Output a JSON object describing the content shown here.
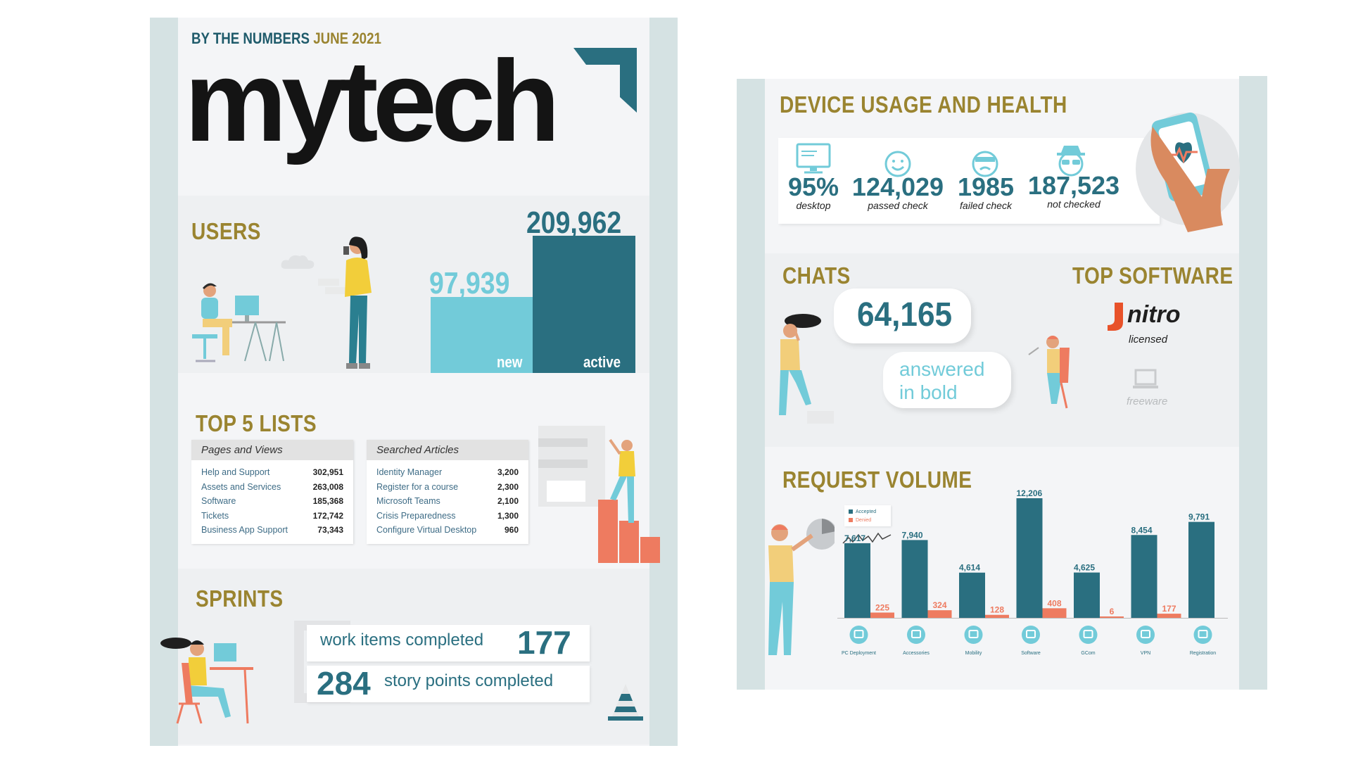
{
  "header": {
    "kicker": "BY THE NUMBERS",
    "date": "JUNE 2021",
    "logo_text": "mytech"
  },
  "users": {
    "title": "USERS",
    "new_value": "97,939",
    "new_label": "new",
    "active_value": "209,962",
    "active_label": "active",
    "new_count": 97939,
    "active_count": 209962
  },
  "top5": {
    "title": "TOP 5 LISTS",
    "pages": {
      "header": "Pages and Views",
      "rows": [
        {
          "label": "Help and Support",
          "value": "302,951"
        },
        {
          "label": "Assets and Services",
          "value": "263,008"
        },
        {
          "label": "Software",
          "value": "185,368"
        },
        {
          "label": "Tickets",
          "value": "172,742"
        },
        {
          "label": "Business App Support",
          "value": "73,343"
        }
      ]
    },
    "articles": {
      "header": "Searched Articles",
      "rows": [
        {
          "label": "Identity Manager",
          "value": "3,200"
        },
        {
          "label": "Register for a course",
          "value": "2,300"
        },
        {
          "label": "Microsoft Teams",
          "value": "2,100"
        },
        {
          "label": "Crisis Preparedness",
          "value": "1,300"
        },
        {
          "label": "Configure Virtual Desktop",
          "value": "960"
        }
      ]
    }
  },
  "sprints": {
    "title": "SPRINTS",
    "work_label": "work items completed",
    "work_value": "177",
    "story_value": "284",
    "story_label": "story points completed"
  },
  "device": {
    "title": "DEVICE USAGE AND HEALTH",
    "stats": [
      {
        "icon": "desktop-icon",
        "value": "95%",
        "label": "desktop"
      },
      {
        "icon": "smiley-face-icon",
        "value": "124,029",
        "label": "passed check"
      },
      {
        "icon": "bandaged-face-icon",
        "value": "1985",
        "label": "failed check"
      },
      {
        "icon": "incognito-face-icon",
        "value": "187,523",
        "label": "not checked"
      }
    ]
  },
  "chats": {
    "title": "CHATS",
    "value": "64,165",
    "note_line1": "answered",
    "note_line2": "in bold"
  },
  "software": {
    "title": "TOP SOFTWARE",
    "brand": "nitro",
    "brand_label": "licensed",
    "freeware_label": "freeware"
  },
  "colors": {
    "accent_teal": "#2a6f80",
    "light_teal": "#72cbd9",
    "olive": "#9a8430",
    "salmon": "#ee7b60"
  },
  "chart_data": {
    "type": "bar",
    "title": "REQUEST VOLUME",
    "categories": [
      "PC Deployment",
      "Accessories",
      "Mobility",
      "Software",
      "GCom",
      "VPN",
      "Registration"
    ],
    "category_icons": [
      "pc-deployment-icon",
      "accessories-icon",
      "mobility-icon",
      "software-icon",
      "gcom-icon",
      "vpn-icon",
      "registration-icon"
    ],
    "series": [
      {
        "name": "Accepted",
        "color": "#2a6f80",
        "values": [
          7617,
          7940,
          4614,
          12206,
          4625,
          8454,
          9791
        ],
        "labels": [
          "7,617",
          "7,940",
          "4,614",
          "12,206",
          "4,625",
          "8,454",
          "9,791"
        ]
      },
      {
        "name": "Denied",
        "color": "#ee7b60",
        "values": [
          225,
          324,
          128,
          408,
          6,
          177,
          null
        ],
        "labels": [
          "225",
          "324",
          "128",
          "408",
          "6",
          "177",
          ""
        ]
      }
    ],
    "legend": "top-left",
    "ylim": [
      0,
      12206
    ]
  }
}
